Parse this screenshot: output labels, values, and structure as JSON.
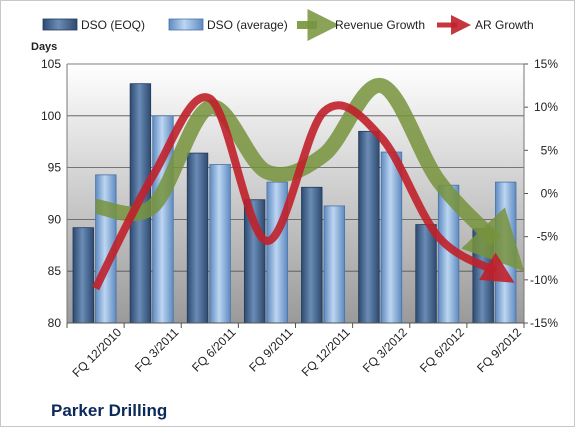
{
  "chart_data": {
    "type": "bar",
    "title": "Parker Drilling",
    "ylabel": "Days",
    "ylim": [
      80,
      105
    ],
    "y_ticks": [
      80,
      85,
      90,
      95,
      100,
      105
    ],
    "y2lim": [
      -15,
      15
    ],
    "y2_ticks": [
      "-15%",
      "-10%",
      "-5%",
      "0%",
      "5%",
      "10%",
      "15%"
    ],
    "categories": [
      "FQ 12/2010",
      "FQ 3/2011",
      "FQ 6/2011",
      "FQ 9/2011",
      "FQ 12/2011",
      "FQ 3/2012",
      "FQ 6/2012",
      "FQ 9/2012"
    ],
    "series": [
      {
        "name": "DSO (EOQ)",
        "kind": "bar",
        "axis": "left",
        "color": "#4a6a94",
        "values": [
          89.2,
          103.1,
          96.4,
          91.9,
          93.1,
          98.5,
          89.5,
          89.1
        ]
      },
      {
        "name": "DSO (average)",
        "kind": "bar",
        "axis": "left",
        "color": "#8fb6e0",
        "values": [
          94.3,
          100.0,
          95.3,
          93.6,
          91.3,
          96.5,
          93.3,
          93.6
        ]
      },
      {
        "name": "Revenue Growth",
        "kind": "line",
        "axis": "right",
        "unit": "%",
        "color": "#77933c",
        "values": [
          -1.5,
          -1.5,
          10.0,
          2.5,
          4.5,
          12.5,
          1.5,
          -5.5
        ]
      },
      {
        "name": "AR Growth",
        "kind": "line",
        "axis": "right",
        "unit": "%",
        "color": "#c0202a",
        "values": [
          -11.0,
          2.0,
          11.0,
          -5.5,
          9.5,
          6.5,
          -5.0,
          -9.0
        ]
      }
    ],
    "legend_position": "top",
    "grid": true
  },
  "colors": {
    "plot_top": "#ffffff",
    "plot_bottom": "#9a9a9a",
    "grid": "#555555",
    "title": "#0b2a5a"
  }
}
